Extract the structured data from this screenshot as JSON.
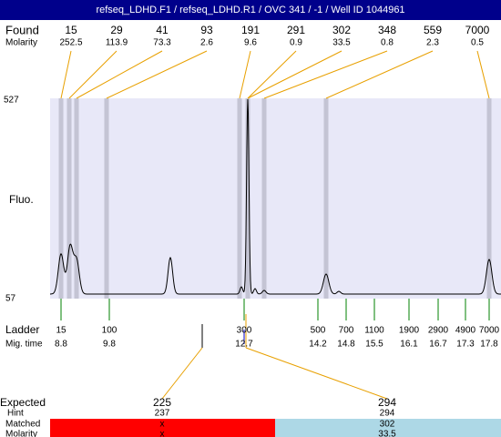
{
  "title": "refseq_LDHD.F1 / refseq_LDHD.R1 / OVC 341  / -1 / Well ID 1044961",
  "found": {
    "label": "Found",
    "values": [
      15,
      29,
      41,
      93,
      191,
      291,
      302,
      348,
      559,
      7000
    ],
    "molarity_label": "Molarity",
    "molarity": [
      252.5,
      113.9,
      73.3,
      2.6,
      9.6,
      0.9,
      33.5,
      0.8,
      2.3,
      0.5
    ]
  },
  "fluo": {
    "label": "Fluo.",
    "top": 527,
    "bottom": 57
  },
  "ladder": {
    "label": "Ladder",
    "sizes": [
      15,
      100,
      300,
      500,
      700,
      1100,
      1900,
      2900,
      4900,
      7000
    ],
    "mig_label": "Mig. time",
    "mig_times": [
      8.8,
      9.8,
      12.7,
      14.2,
      14.8,
      15.5,
      16.1,
      16.7,
      17.3,
      17.8
    ]
  },
  "expected": {
    "label": "Expected",
    "values": [
      225,
      294
    ],
    "hint_label": "Hint",
    "hints": [
      237,
      294
    ],
    "matched_label": "Matched",
    "matched": [
      "x",
      302
    ],
    "molarity_label": "Molarity",
    "molarity": [
      "x",
      33.5
    ]
  }
}
